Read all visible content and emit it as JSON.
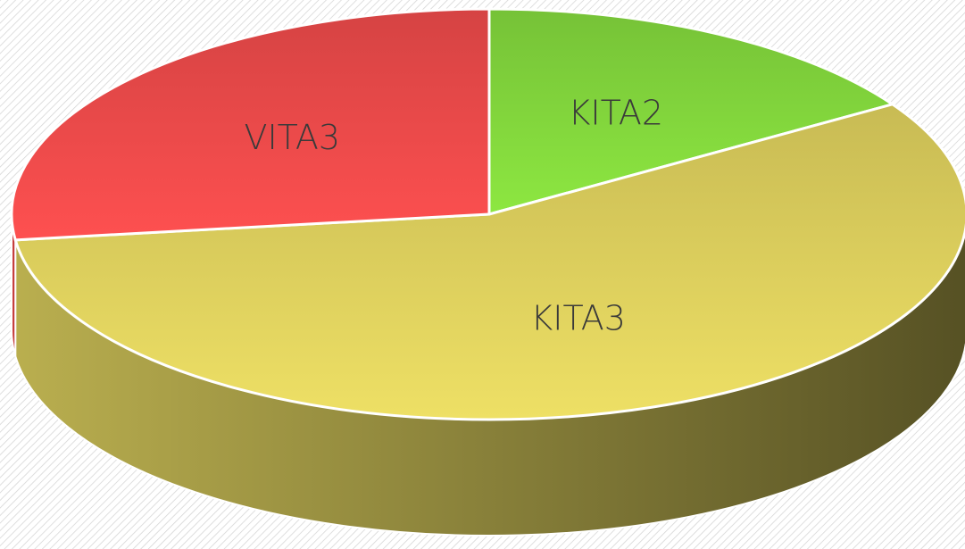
{
  "chart_data": {
    "type": "pie3d",
    "categories": [
      "KITA2",
      "KITA3",
      "VITA3"
    ],
    "values": [
      16,
      57,
      27
    ],
    "colors": [
      "#86dc3e",
      "#e3d560",
      "#f24c4c"
    ]
  }
}
